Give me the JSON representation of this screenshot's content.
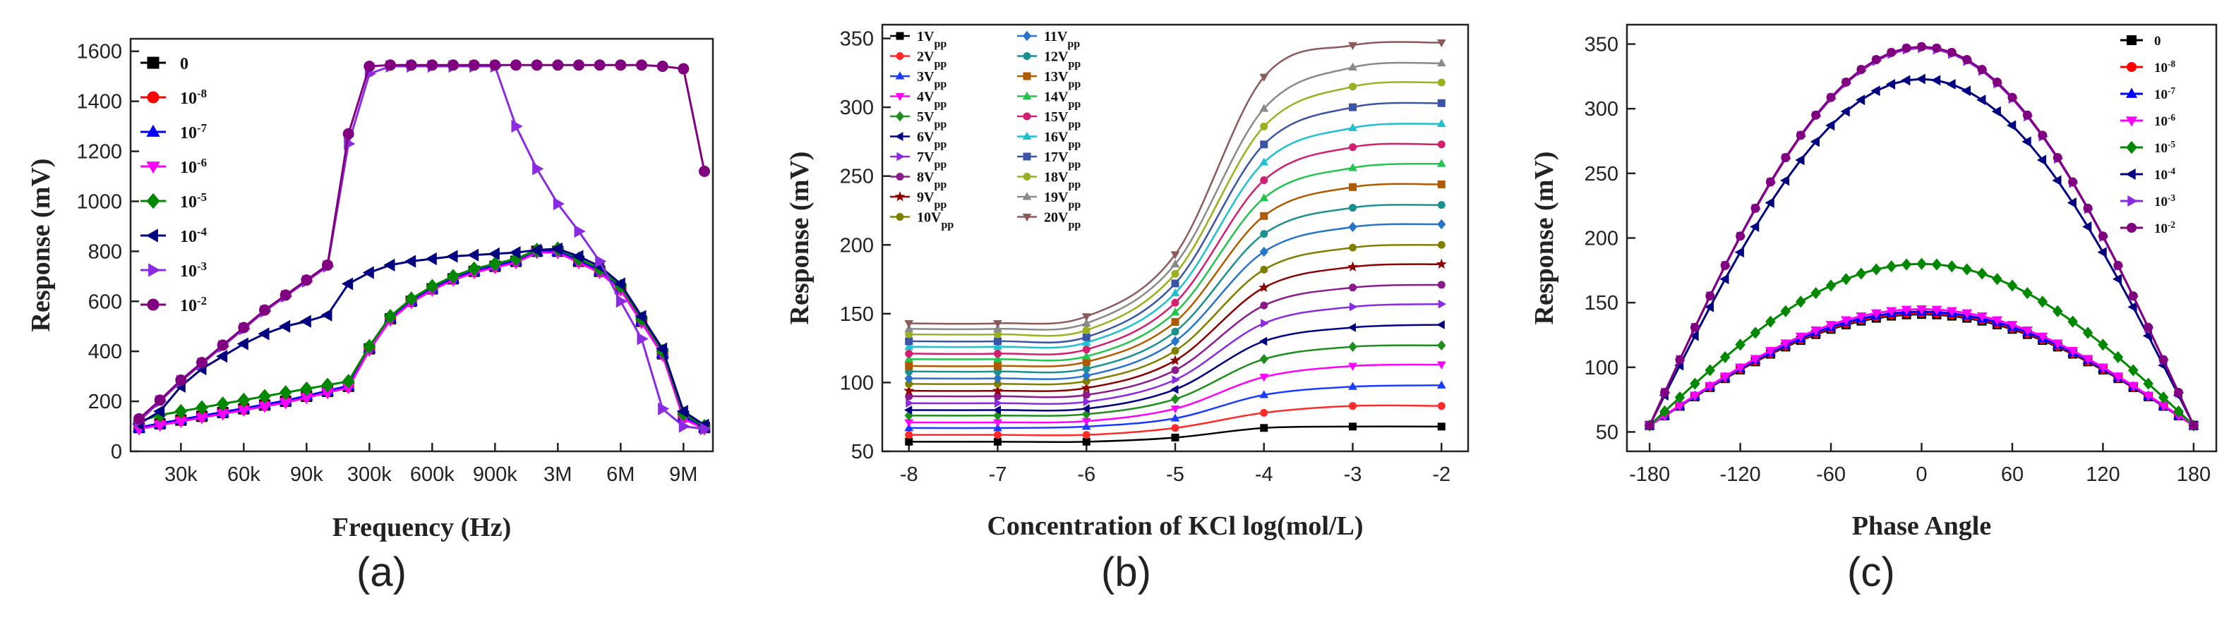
{
  "panel_labels": {
    "a": "(a)",
    "b": "(b)",
    "c": "(c)"
  },
  "chart_data": [
    {
      "type": "line",
      "panel": "(a)",
      "xlabel": "Frequency (Hz)",
      "ylabel": "Response  (mV)",
      "ylim": [
        0,
        1650
      ],
      "yticks": [
        0,
        200,
        400,
        600,
        800,
        1000,
        1200,
        1400,
        1600
      ],
      "x_tick_labels": [
        "30k",
        "60k",
        "90k",
        "300k",
        "600k",
        "900k",
        "3M",
        "6M",
        "9M"
      ],
      "x_index_range": [
        0,
        27
      ],
      "x_tick_index": [
        2,
        5,
        8,
        11,
        14,
        17,
        20,
        23,
        26
      ],
      "legend_position": "top-left",
      "series": [
        {
          "name": "0",
          "color": "#000000",
          "marker": "square",
          "values": [
            95,
            110,
            125,
            140,
            155,
            170,
            185,
            200,
            220,
            240,
            260,
            410,
            530,
            600,
            650,
            690,
            720,
            740,
            760,
            800,
            800,
            760,
            720,
            650,
            520,
            390,
            140,
            95
          ]
        },
        {
          "name": "10⁻⁸",
          "color": "#ff0000",
          "marker": "circle",
          "values": [
            95,
            110,
            125,
            140,
            155,
            170,
            185,
            200,
            220,
            240,
            260,
            410,
            530,
            600,
            650,
            690,
            720,
            740,
            760,
            800,
            800,
            760,
            720,
            650,
            520,
            390,
            135,
            95
          ]
        },
        {
          "name": "10⁻⁷",
          "color": "#0000ff",
          "marker": "triangle",
          "values": [
            95,
            112,
            127,
            142,
            157,
            172,
            187,
            203,
            222,
            242,
            262,
            412,
            532,
            602,
            652,
            692,
            722,
            742,
            762,
            800,
            800,
            762,
            722,
            652,
            522,
            392,
            140,
            96
          ]
        },
        {
          "name": "10⁻⁶",
          "color": "#ff00ff",
          "marker": "triangle-down",
          "values": [
            90,
            105,
            120,
            135,
            150,
            165,
            180,
            195,
            215,
            235,
            255,
            405,
            525,
            595,
            645,
            685,
            715,
            735,
            755,
            795,
            795,
            755,
            715,
            645,
            515,
            385,
            130,
            90
          ]
        },
        {
          "name": "10⁻⁵",
          "color": "#008800",
          "marker": "diamond",
          "values": [
            120,
            145,
            160,
            175,
            190,
            205,
            220,
            235,
            250,
            265,
            280,
            420,
            540,
            610,
            660,
            700,
            730,
            750,
            770,
            805,
            810,
            770,
            730,
            660,
            530,
            400,
            150,
            100
          ]
        },
        {
          "name": "10⁻⁴",
          "color": "#000080",
          "marker": "triangle-left",
          "values": [
            110,
            160,
            260,
            330,
            380,
            430,
            470,
            500,
            520,
            545,
            670,
            715,
            745,
            760,
            770,
            780,
            785,
            790,
            795,
            805,
            810,
            780,
            740,
            670,
            540,
            410,
            160,
            105
          ]
        },
        {
          "name": "10⁻³",
          "color": "#8a2be2",
          "marker": "triangle-right",
          "values": [
            120,
            200,
            280,
            350,
            420,
            490,
            560,
            620,
            680,
            740,
            1230,
            1510,
            1540,
            1540,
            1540,
            1540,
            1540,
            1540,
            1300,
            1130,
            990,
            880,
            760,
            600,
            450,
            170,
            100,
            90
          ]
        },
        {
          "name": "10⁻²",
          "color": "#800080",
          "marker": "circle",
          "values": [
            130,
            205,
            285,
            355,
            425,
            495,
            565,
            625,
            685,
            745,
            1270,
            1540,
            1545,
            1545,
            1545,
            1545,
            1545,
            1545,
            1545,
            1545,
            1545,
            1545,
            1545,
            1545,
            1545,
            1540,
            1530,
            1120
          ]
        }
      ]
    },
    {
      "type": "line",
      "panel": "(b)",
      "xlabel": "Concentration of KCl log(mol/L)",
      "ylabel": "Response (mV)",
      "xlim": [
        -8.3,
        -1.7
      ],
      "ylim": [
        50,
        360
      ],
      "xticks": [
        -8,
        -7,
        -6,
        -5,
        -4,
        -3,
        -2
      ],
      "yticks": [
        50,
        100,
        150,
        200,
        250,
        300,
        350
      ],
      "x_points": [
        -8,
        -7,
        -6,
        -5,
        -4,
        -3,
        -2
      ],
      "legend_position": "top-left",
      "sub_label": "pp",
      "series": [
        {
          "name": "1V",
          "color": "#000000",
          "marker": "square",
          "values": [
            57,
            57,
            57,
            60,
            67,
            68,
            68
          ]
        },
        {
          "name": "2V",
          "color": "#ff2a2a",
          "marker": "circle",
          "values": [
            62,
            62,
            62,
            67,
            78,
            83,
            83
          ]
        },
        {
          "name": "3V",
          "color": "#1a3cff",
          "marker": "triangle",
          "values": [
            67,
            67,
            68,
            74,
            91,
            97,
            98
          ]
        },
        {
          "name": "4V",
          "color": "#ff00ff",
          "marker": "triangle-down",
          "values": [
            71,
            71,
            72,
            81,
            104,
            112,
            113
          ]
        },
        {
          "name": "5V",
          "color": "#1e8f1e",
          "marker": "diamond",
          "values": [
            76,
            76,
            77,
            88,
            117,
            126,
            127
          ]
        },
        {
          "name": "6V",
          "color": "#000080",
          "marker": "triangle-left",
          "values": [
            80,
            80,
            81,
            95,
            130,
            140,
            142
          ]
        },
        {
          "name": "7V",
          "color": "#8a2be2",
          "marker": "triangle-right",
          "values": [
            85,
            85,
            86,
            102,
            143,
            155,
            157
          ]
        },
        {
          "name": "8V",
          "color": "#8b1a8b",
          "marker": "circle",
          "values": [
            90,
            90,
            91,
            109,
            156,
            169,
            171
          ]
        },
        {
          "name": "9V",
          "color": "#8b0000",
          "marker": "star",
          "values": [
            94,
            94,
            96,
            116,
            169,
            184,
            186
          ]
        },
        {
          "name": "10V",
          "color": "#808000",
          "marker": "circle",
          "values": [
            99,
            99,
            101,
            123,
            182,
            198,
            200
          ]
        },
        {
          "name": "11V",
          "color": "#2874c8",
          "marker": "diamond",
          "values": [
            103,
            103,
            105,
            130,
            195,
            213,
            215
          ]
        },
        {
          "name": "12V",
          "color": "#1c8f8f",
          "marker": "circle",
          "values": [
            108,
            108,
            110,
            137,
            208,
            227,
            229
          ]
        },
        {
          "name": "13V",
          "color": "#b05a00",
          "marker": "square",
          "values": [
            112,
            112,
            115,
            144,
            221,
            242,
            244
          ]
        },
        {
          "name": "14V",
          "color": "#22c44f",
          "marker": "triangle",
          "values": [
            117,
            117,
            119,
            151,
            234,
            256,
            259
          ]
        },
        {
          "name": "15V",
          "color": "#d0206f",
          "marker": "circle",
          "values": [
            121,
            121,
            124,
            158,
            247,
            271,
            273
          ]
        },
        {
          "name": "16V",
          "color": "#20c0d0",
          "marker": "triangle",
          "values": [
            126,
            126,
            129,
            165,
            260,
            285,
            288
          ]
        },
        {
          "name": "17V",
          "color": "#3a55a5",
          "marker": "square",
          "values": [
            130,
            130,
            133,
            172,
            273,
            300,
            303
          ]
        },
        {
          "name": "18V",
          "color": "#9ab020",
          "marker": "circle",
          "values": [
            135,
            135,
            138,
            179,
            286,
            315,
            318
          ]
        },
        {
          "name": "19V",
          "color": "#8a8a8a",
          "marker": "triangle",
          "values": [
            139,
            139,
            143,
            186,
            299,
            329,
            332
          ]
        },
        {
          "name": "20V",
          "color": "#8b5a5a",
          "marker": "triangle-down",
          "values": [
            143,
            143,
            148,
            193,
            322,
            345,
            347
          ]
        }
      ]
    },
    {
      "type": "line",
      "panel": "(c)",
      "xlabel": "Phase Angle",
      "ylabel": "Response (mV)",
      "xlim": [
        -195,
        195
      ],
      "ylim": [
        35,
        365
      ],
      "xticks": [
        -180,
        -120,
        -60,
        0,
        60,
        120,
        180
      ],
      "yticks": [
        50,
        100,
        150,
        200,
        250,
        300,
        350
      ],
      "x_step": 10,
      "legend_position": "top-right",
      "series": [
        {
          "name": "0",
          "color": "#000000",
          "marker": "square",
          "min": 55,
          "peak": 141
        },
        {
          "name": "10⁻⁸",
          "color": "#ff0000",
          "marker": "circle",
          "min": 55,
          "peak": 142
        },
        {
          "name": "10⁻⁷",
          "color": "#0000ff",
          "marker": "triangle",
          "min": 55,
          "peak": 143
        },
        {
          "name": "10⁻⁶",
          "color": "#ff00ff",
          "marker": "triangle-down",
          "min": 55,
          "peak": 145
        },
        {
          "name": "10⁻⁵",
          "color": "#008800",
          "marker": "diamond",
          "min": 55,
          "peak": 180
        },
        {
          "name": "10⁻⁴",
          "color": "#000080",
          "marker": "triangle-left",
          "min": 55,
          "peak": 323
        },
        {
          "name": "10⁻³",
          "color": "#8a2be2",
          "marker": "triangle-right",
          "min": 55,
          "peak": 347
        },
        {
          "name": "10⁻²",
          "color": "#800080",
          "marker": "circle",
          "min": 55,
          "peak": 348
        }
      ]
    }
  ]
}
